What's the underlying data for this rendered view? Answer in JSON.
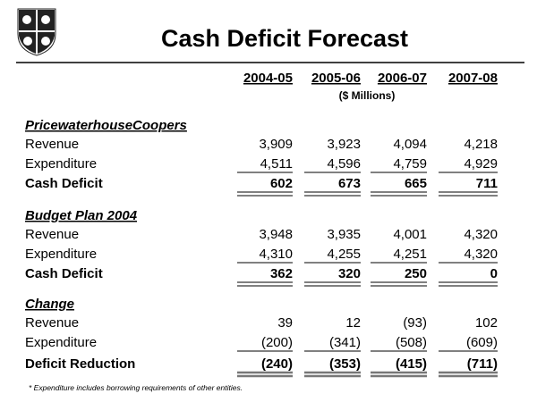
{
  "header": {
    "title": "Cash Deficit Forecast"
  },
  "table": {
    "columns": [
      "2004-05",
      "2005-06",
      "2006-07",
      "2007-08"
    ],
    "units": "($ Millions)",
    "sections": [
      {
        "heading": "PricewaterhouseCoopers",
        "rows": [
          {
            "label": "Revenue",
            "values": [
              "3,909",
              "3,923",
              "4,094",
              "4,218"
            ]
          },
          {
            "label": "Expenditure",
            "values": [
              "4,511",
              "4,596",
              "4,759",
              "4,929"
            ]
          },
          {
            "label": "Cash Deficit",
            "values": [
              "602",
              "673",
              "665",
              "711"
            ]
          }
        ]
      },
      {
        "heading": "Budget Plan 2004",
        "rows": [
          {
            "label": "Revenue",
            "values": [
              "3,948",
              "3,935",
              "4,001",
              "4,320"
            ]
          },
          {
            "label": "Expenditure",
            "values": [
              "4,310",
              "4,255",
              "4,251",
              "4,320"
            ]
          },
          {
            "label": "Cash Deficit",
            "values": [
              "362",
              "320",
              "250",
              "0"
            ]
          }
        ]
      },
      {
        "heading": "Change",
        "rows": [
          {
            "label": "Revenue",
            "values": [
              "39",
              "12",
              "(93)",
              "102"
            ]
          },
          {
            "label": "Expenditure",
            "values": [
              "(200)",
              "(341)",
              "(508)",
              "(609)"
            ]
          },
          {
            "label": "Deficit Reduction",
            "values": [
              "(240)",
              "(353)",
              "(415)",
              "(711)"
            ]
          }
        ]
      }
    ]
  },
  "footnote": "* Expenditure includes borrowing requirements of other entities."
}
